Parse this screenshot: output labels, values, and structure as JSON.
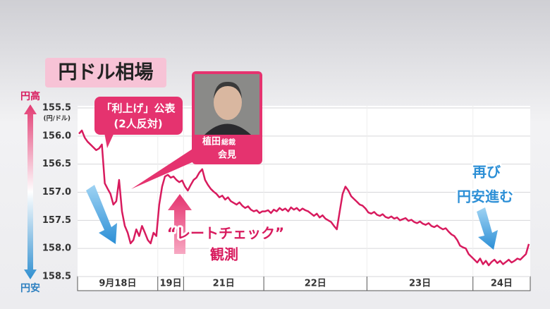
{
  "chart_data": {
    "type": "line",
    "title": "円ドル相場",
    "y_unit": "(円/ドル)",
    "y_top_label": "円高",
    "y_bottom_label": "円安",
    "color": "#d81b5e",
    "inverted_y": true,
    "grid": true,
    "ylim": [
      155.5,
      158.5
    ],
    "yticks": [
      155.5,
      {
        "value": 156,
        "label": "156.0"
      },
      156.5,
      {
        "value": 157,
        "label": "157.0"
      },
      157.5,
      {
        "value": 158,
        "label": "158.0"
      },
      158.5
    ],
    "days": [
      {
        "label": "9月18日",
        "values": [
          155.96,
          155.9,
          156.03,
          156.1,
          156.15,
          156.2,
          156.25,
          156.22,
          156.15,
          156.84,
          156.94,
          157.03,
          157.22,
          157.16,
          156.78,
          157.34,
          157.6,
          157.72,
          157.91,
          157.85,
          157.66,
          157.78,
          157.6,
          157.72,
          157.85,
          157.91,
          157.72,
          157.78
        ]
      },
      {
        "label": "19日",
        "values": [
          157.22,
          156.9,
          156.72,
          156.69,
          156.74,
          156.72,
          156.78,
          156.82,
          156.79
        ]
      },
      {
        "label": "21日",
        "values": [
          156.9,
          156.97,
          156.87,
          156.78,
          156.74,
          156.65,
          156.59,
          156.78,
          156.87,
          156.94,
          156.99,
          157.03,
          157.09,
          157.06,
          157.13,
          157.09,
          157.16,
          157.19,
          157.22,
          157.18,
          157.24,
          157.28,
          157.25,
          157.31,
          157.34,
          157.32,
          157.37,
          157.34
        ]
      },
      {
        "label": "22日",
        "values": [
          157.34,
          157.32,
          157.37,
          157.31,
          157.34,
          157.28,
          157.32,
          157.29,
          157.34,
          157.27,
          157.31,
          157.28,
          157.33,
          157.29,
          157.32,
          157.34,
          157.38,
          157.42,
          157.38,
          157.45,
          157.41,
          157.47,
          157.5,
          157.53,
          157.6,
          157.66,
          157.34,
          157.03,
          156.9,
          156.97,
          157.07,
          157.12,
          157.17,
          157.22,
          157.24,
          157.29
        ]
      },
      {
        "label": "23日",
        "values": [
          157.36,
          157.38,
          157.35,
          157.4,
          157.42,
          157.39,
          157.44,
          157.46,
          157.43,
          157.47,
          157.45,
          157.5,
          157.48,
          157.46,
          157.51,
          157.49,
          157.53,
          157.55,
          157.52,
          157.56,
          157.58,
          157.55,
          157.6,
          157.62,
          157.59,
          157.63,
          157.66,
          157.64,
          157.7,
          157.75,
          157.78,
          157.85,
          157.95,
          157.98,
          158.0,
          158.1,
          158.15
        ]
      },
      {
        "label": "24日",
        "values": [
          158.2,
          158.25,
          158.18,
          158.28,
          158.22,
          158.3,
          158.24,
          158.2,
          158.26,
          158.22,
          158.28,
          158.24,
          158.2,
          158.25,
          158.22,
          158.18,
          158.2,
          158.15,
          158.1,
          157.92
        ]
      }
    ],
    "annotations": {
      "hike": [
        "「利上げ」公表",
        "(2人反対)"
      ],
      "ueda": [
        "植田",
        "総裁",
        "会見"
      ],
      "ratecheck": [
        "“レートチェック”",
        "観測"
      ],
      "weaken": [
        "再び",
        "円安進む"
      ]
    }
  }
}
